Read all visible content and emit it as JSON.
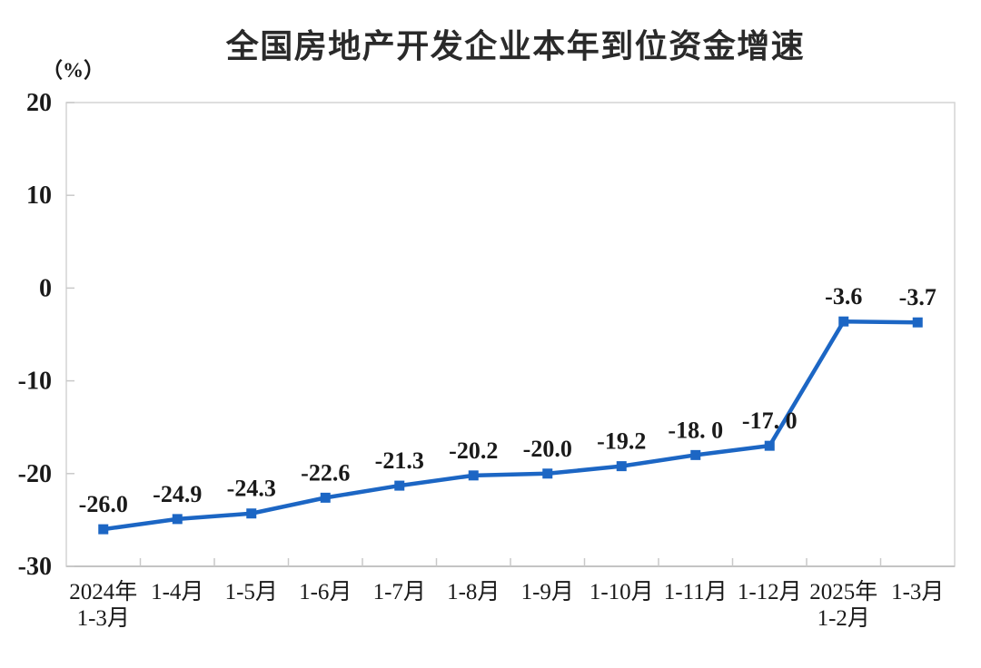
{
  "chart_data": {
    "type": "line",
    "title": "全国房地产开发企业本年到位资金增速",
    "unit_label": "（%）",
    "categories": [
      "2024年\n1-3月",
      "1-4月",
      "1-5月",
      "1-6月",
      "1-7月",
      "1-8月",
      "1-9月",
      "1-10月",
      "1-11月",
      "1-12月",
      "2025年\n1-2月",
      "1-3月"
    ],
    "values": [
      -26.0,
      -24.9,
      -24.3,
      -22.6,
      -21.3,
      -20.2,
      -20.0,
      -19.2,
      -18.0,
      -17.0,
      -3.6,
      -3.7
    ],
    "point_labels": [
      "-26.0",
      "-24.9",
      "-24.3",
      "-22.6",
      "-21.3",
      "-20.2",
      "-20.0",
      "-19.2",
      "-18. 0",
      "-17. 0",
      "-3.6",
      "-3.7"
    ],
    "ylim": [
      -30,
      20
    ],
    "yticks": [
      20,
      10,
      0,
      -10,
      -20,
      -30
    ],
    "xlabel": "",
    "ylabel": "（%）",
    "grid": false,
    "legend_position": "none",
    "marker": "square",
    "colors": {
      "line": "#1c66c4",
      "marker": "#1c66c4",
      "text": "#1a1a1a",
      "title": "#2a2a2a",
      "plot_border": "#d4d4d4",
      "tick": "#c9c9c9",
      "background": "#ffffff"
    }
  }
}
